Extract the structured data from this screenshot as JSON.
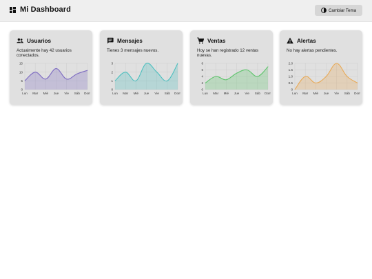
{
  "header": {
    "title": "Mi Dashboard",
    "theme_button": "Cambiar Tema",
    "icons": {
      "brand": "dashboard-grid-icon",
      "theme": "contrast-icon"
    }
  },
  "days": [
    "Lun",
    "Mar",
    "Mié",
    "Jue",
    "Vie",
    "Sáb",
    "Dom"
  ],
  "cards": [
    {
      "title": "Usuarios",
      "icon": "users-icon",
      "text": "Actualmente hay 42 usuarios conectados.",
      "color": "#7d6bc2",
      "fill": "rgba(125,107,194,0.28)",
      "chart_data": {
        "type": "area",
        "x": [
          "Lun",
          "Mar",
          "Mié",
          "Jue",
          "Vie",
          "Sáb",
          "Dom"
        ],
        "values": [
          5,
          10,
          6,
          12,
          6,
          9,
          11
        ],
        "ylim": [
          0,
          15
        ],
        "yticks": [
          0,
          5,
          10,
          15
        ],
        "ytick_labels": [
          "0",
          "5",
          "10",
          "15"
        ],
        "grid": true
      }
    },
    {
      "title": "Mensajes",
      "icon": "message-icon",
      "text": "Tienes 3 mensajes nuevos.",
      "color": "#4bbfbf",
      "fill": "rgba(75,191,191,0.28)",
      "chart_data": {
        "type": "area",
        "x": [
          "Lun",
          "Mar",
          "Mié",
          "Jue",
          "Vie",
          "Sáb",
          "Dom"
        ],
        "values": [
          1,
          2,
          1,
          3,
          2,
          1,
          3
        ],
        "ylim": [
          0,
          3
        ],
        "yticks": [
          0,
          1,
          2,
          3
        ],
        "ytick_labels": [
          "0",
          "1",
          "2",
          "3"
        ],
        "grid": true
      }
    },
    {
      "title": "Ventas",
      "icon": "cart-icon",
      "text": "Hoy se han registrado 12 ventas nuevas.",
      "color": "#5dc46b",
      "fill": "rgba(93,196,107,0.28)",
      "chart_data": {
        "type": "area",
        "x": [
          "Lun",
          "Mar",
          "Mié",
          "Jue",
          "Vie",
          "Sáb",
          "Dom"
        ],
        "values": [
          2,
          4,
          3,
          5,
          6,
          4,
          7
        ],
        "ylim": [
          0,
          8
        ],
        "yticks": [
          0,
          2,
          4,
          6,
          8
        ],
        "ytick_labels": [
          "0",
          "2",
          "4",
          "6",
          "8"
        ],
        "grid": true
      }
    },
    {
      "title": "Alertas",
      "icon": "warning-icon",
      "text": "No hay alertas pendientes.",
      "color": "#e8a955",
      "fill": "rgba(232,169,85,0.28)",
      "chart_data": {
        "type": "area",
        "x": [
          "Lun",
          "Mar",
          "Mié",
          "Jue",
          "Vie",
          "Sáb",
          "Dom"
        ],
        "values": [
          0,
          1,
          0.5,
          1,
          2,
          1,
          0.5
        ],
        "ylim": [
          0,
          2
        ],
        "yticks": [
          0,
          0.5,
          1,
          1.5,
          2
        ],
        "ytick_labels": [
          "0",
          "0.5",
          "1.0",
          "1.5",
          "2.0"
        ],
        "grid": true
      }
    }
  ]
}
